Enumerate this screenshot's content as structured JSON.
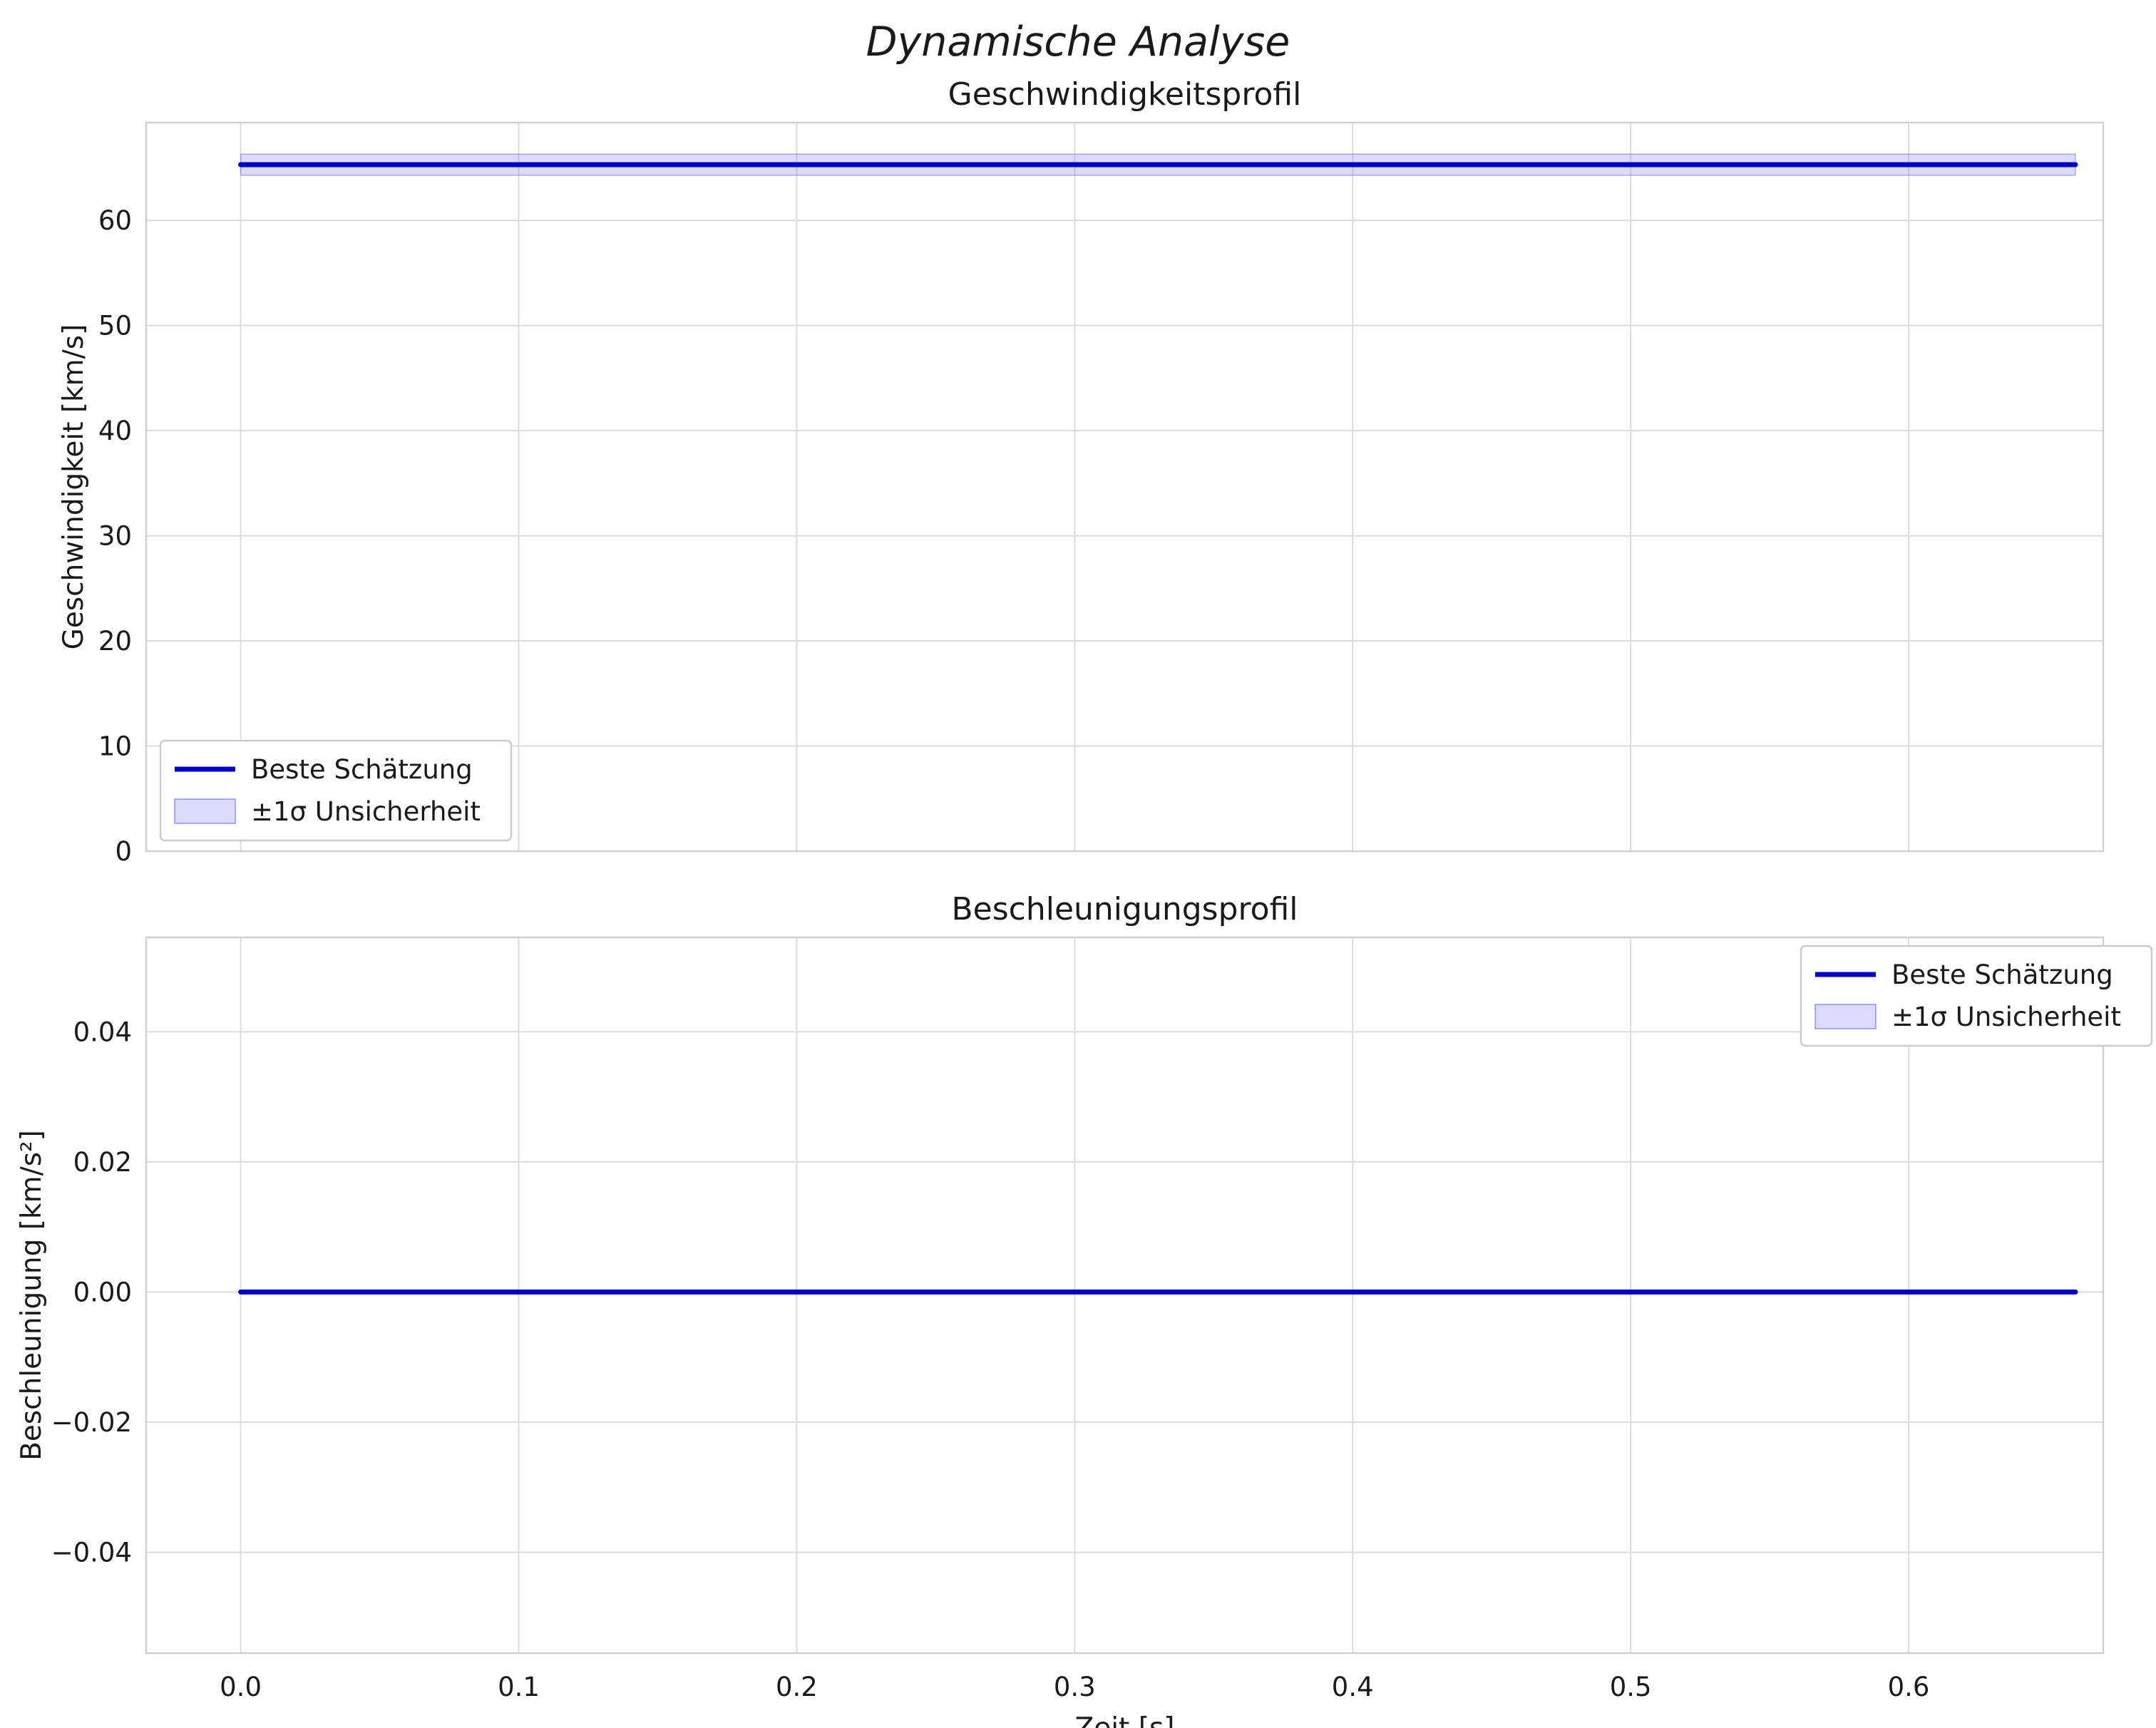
{
  "figure": {
    "title": "Dynamische Analyse",
    "background": "#ffffff",
    "text_color": "#1a1a1a",
    "grid_color": "#dcdcdc",
    "axes_border_color": "#d0d0d0",
    "line_color": "#0000cc",
    "band_fill": "rgba(110,110,255,0.25)",
    "band_edge": "rgba(110,110,255,0.55)"
  },
  "chart_data": [
    {
      "type": "line",
      "title": "Geschwindigkeitsprofil",
      "xlabel": "",
      "ylabel": "Geschwindigkeit [km/s]",
      "xlim": [
        -0.034,
        0.67
      ],
      "ylim": [
        0,
        69.3
      ],
      "grid": true,
      "xticks": [
        0.0,
        0.1,
        0.2,
        0.3,
        0.4,
        0.5,
        0.6
      ],
      "xtick_labels": [],
      "yticks": [
        0,
        10,
        20,
        30,
        40,
        50,
        60
      ],
      "ytick_labels": [
        "0",
        "10",
        "20",
        "30",
        "40",
        "50",
        "60"
      ],
      "series": [
        {
          "name": "Beste Schätzung",
          "x": [
            0.0,
            0.66
          ],
          "y": [
            65.3,
            65.3
          ],
          "sigma": 1.0
        }
      ],
      "legend": {
        "location": "lower left",
        "entries": [
          {
            "label": "Beste Schätzung",
            "swatch": "line"
          },
          {
            "label": "±1σ Unsicherheit",
            "swatch": "patch"
          }
        ]
      }
    },
    {
      "type": "line",
      "title": "Beschleunigungsprofil",
      "xlabel": "Zeit [s]",
      "ylabel": "Beschleunigung [km/s²]",
      "xlim": [
        -0.034,
        0.67
      ],
      "ylim": [
        -0.0555,
        0.0545
      ],
      "grid": true,
      "xticks": [
        0.0,
        0.1,
        0.2,
        0.3,
        0.4,
        0.5,
        0.6
      ],
      "xtick_labels": [
        "0.0",
        "0.1",
        "0.2",
        "0.3",
        "0.4",
        "0.5",
        "0.6"
      ],
      "yticks": [
        -0.04,
        -0.02,
        0.0,
        0.02,
        0.04
      ],
      "ytick_labels": [
        "−0.04",
        "−0.02",
        "0.00",
        "0.02",
        "0.04"
      ],
      "series": [
        {
          "name": "Beste Schätzung",
          "x": [
            0.0,
            0.66
          ],
          "y": [
            0.0,
            0.0
          ],
          "sigma": 0.0002
        }
      ],
      "legend": {
        "location": "upper right",
        "entries": [
          {
            "label": "Beste Schätzung",
            "swatch": "line"
          },
          {
            "label": "±1σ Unsicherheit",
            "swatch": "patch"
          }
        ]
      }
    }
  ]
}
